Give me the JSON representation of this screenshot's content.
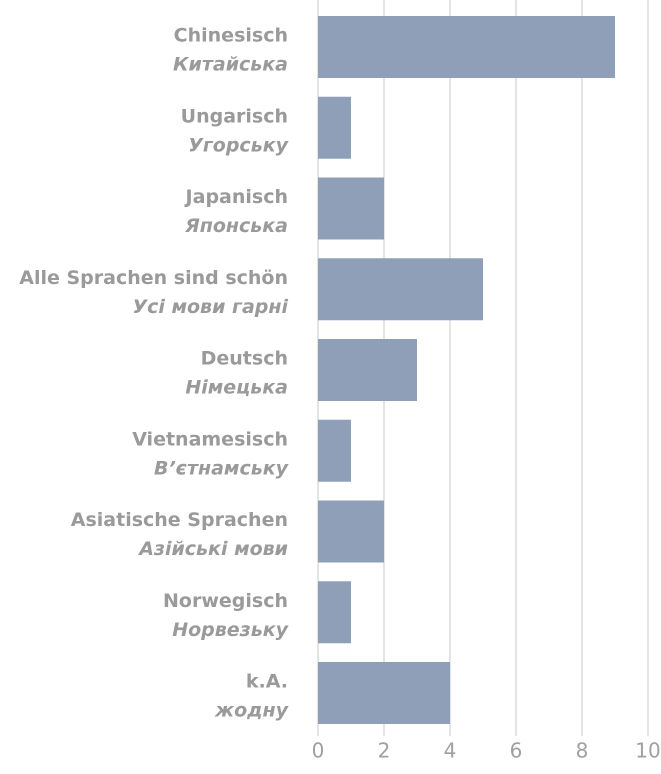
{
  "chart_data": {
    "type": "bar",
    "orientation": "horizontal",
    "categories": [
      "Chinesisch",
      "Ungarisch",
      "Japanisch",
      "Alle Sprachen sind schön",
      "Deutsch",
      "Vietnamesisch",
      "Asiatische Sprachen",
      "Norwegisch",
      "k.A."
    ],
    "categories_uk": [
      "Китайська",
      "Угорську",
      "Японська",
      "Усі мови гарні",
      "Німецька",
      "В’єтнамську",
      "Азійські мови",
      "Норвезьку",
      "жодну"
    ],
    "values": [
      9,
      1,
      2,
      5,
      3,
      1,
      2,
      1,
      4
    ],
    "color": "#8f9fb8",
    "xlim": [
      0,
      10
    ],
    "xticks": [
      0,
      2,
      4,
      6,
      8,
      10
    ],
    "grid": true
  }
}
